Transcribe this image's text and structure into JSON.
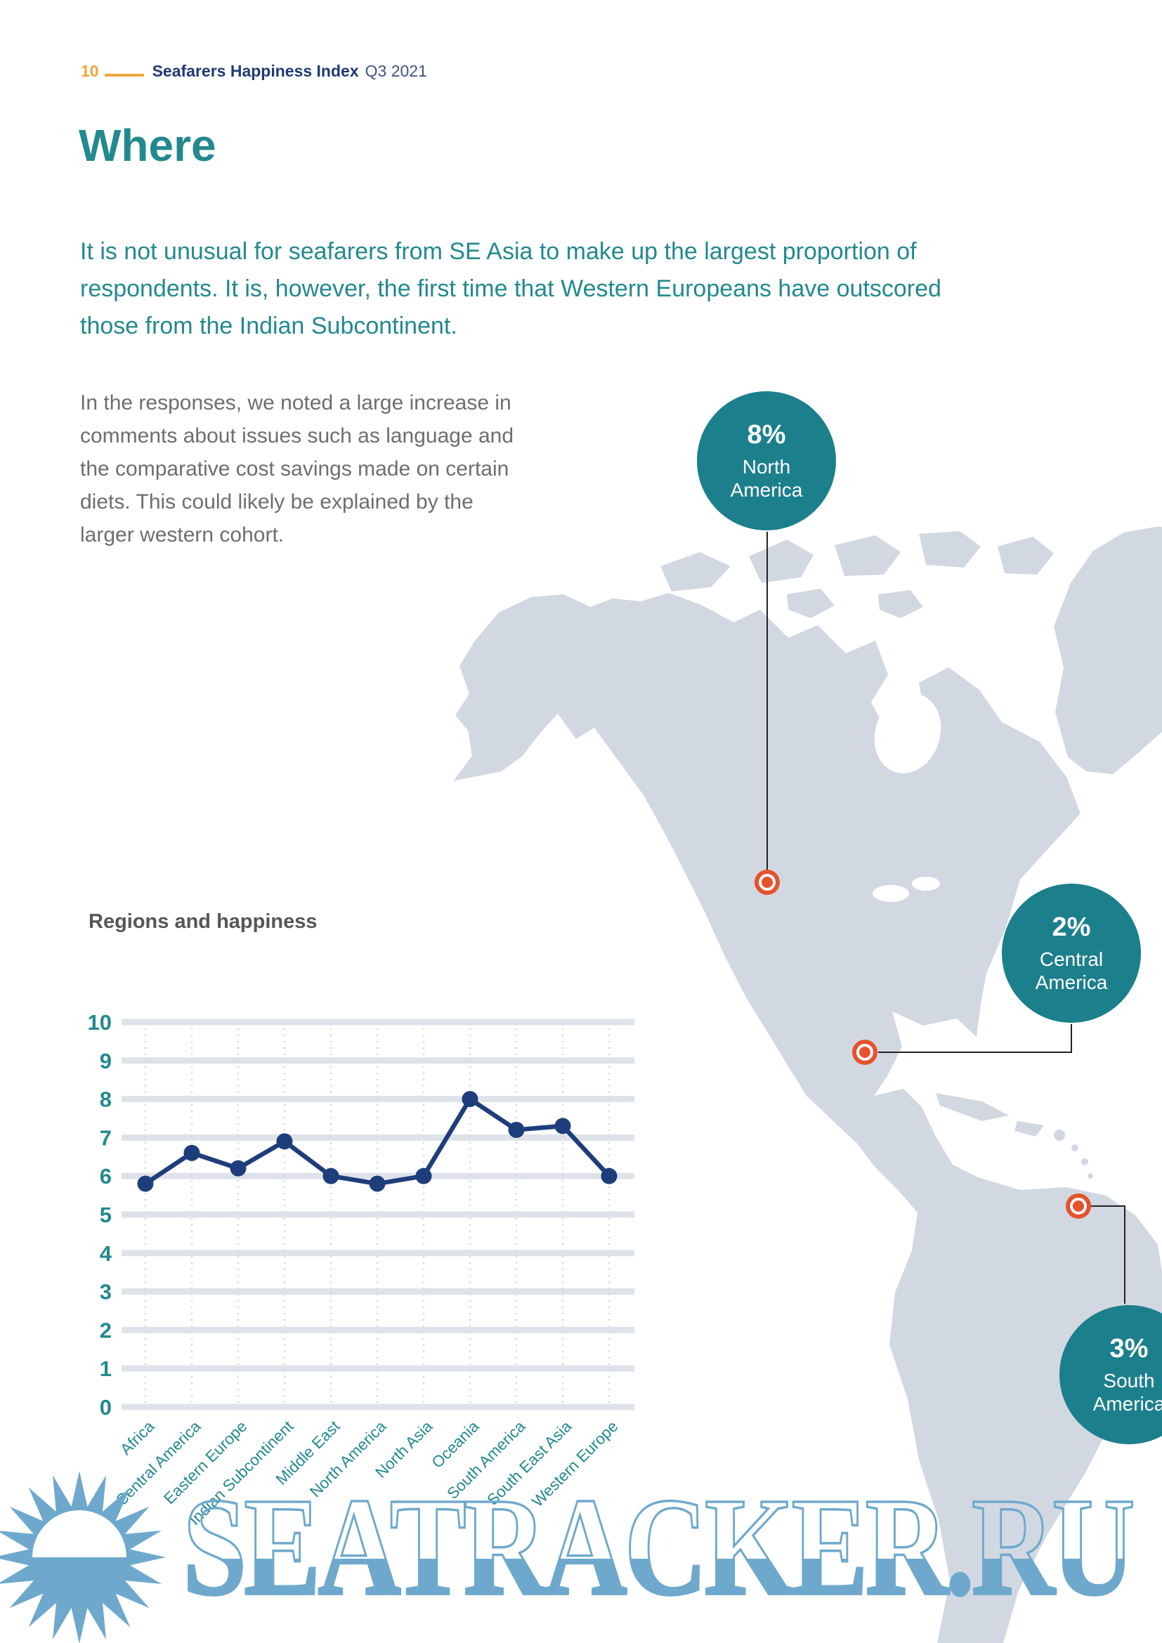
{
  "theme": {
    "teal": "#22898f",
    "badge-teal": "#1c7f8c",
    "navy": "#203a74",
    "header-suffix": "#3d5486",
    "orange": "#f0a43f",
    "body-gray": "#6d6e70",
    "title-gray": "#55565a",
    "land": "#d2d8e2",
    "marker-orange": "#e5522c",
    "connector": "#222222",
    "watermark-blue": "#6ea9cd",
    "line-navy": "#1e3d7b",
    "band-gray": "#dee3ea",
    "vgrid-gray": "#d3d8de"
  },
  "header": {
    "page_number": "10",
    "title": "Seafarers Happiness Index",
    "edition": "Q3 2021"
  },
  "heading": "Where",
  "intro_lines": [
    "It is not unusual for seafarers from SE Asia to make up the largest proportion of",
    "respondents. It is, however, the first time that Western Europeans have outscored",
    "those from the Indian Subcontinent."
  ],
  "body_lines": [
    "In the responses, we noted a large increase in",
    "comments about issues such as language and",
    "the comparative cost savings made on certain",
    "diets. This could likely be explained by the",
    "larger western cohort."
  ],
  "map": {
    "badges": [
      {
        "pct": "8%",
        "region_line1": "North",
        "region_line2": "America"
      },
      {
        "pct": "2%",
        "region_line1": "Central",
        "region_line2": "America"
      },
      {
        "pct": "3%",
        "region_line1": "South",
        "region_line2": "America"
      }
    ]
  },
  "chart_data": {
    "type": "line",
    "title": "Regions and happiness",
    "categories": [
      "Africa",
      "Central America",
      "Eastern Europe",
      "Indian Subcontinent",
      "Middle East",
      "North America",
      "North Asia",
      "Oceania",
      "South America",
      "South East Asia",
      "Western Europe"
    ],
    "values": [
      5.8,
      6.6,
      6.2,
      6.9,
      6.0,
      5.8,
      6.0,
      8.0,
      7.2,
      7.3,
      6.0
    ],
    "ylim": [
      0,
      10
    ],
    "yticks": [
      0,
      1,
      2,
      3,
      4,
      5,
      6,
      7,
      8,
      9,
      10
    ],
    "xlabel": "",
    "ylabel": "",
    "grid": "horizontal-bands-and-dashed-verticals",
    "legend": "none"
  },
  "watermark": {
    "text": "SEATRACKER.RU"
  }
}
